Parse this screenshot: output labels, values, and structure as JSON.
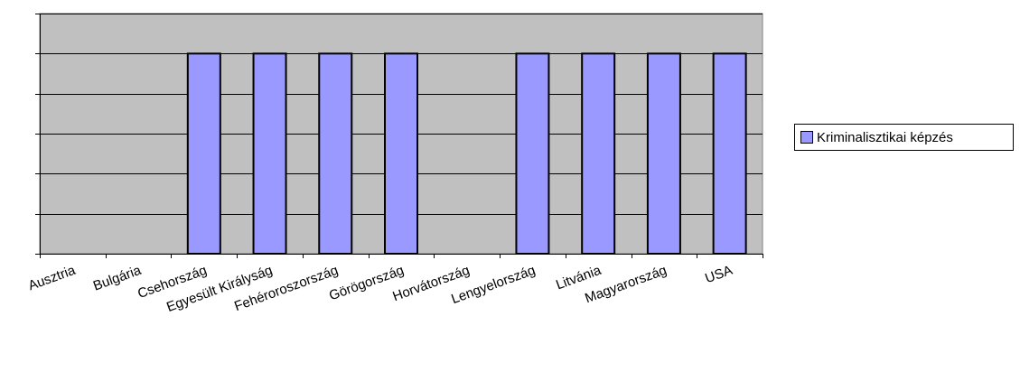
{
  "chart_data": {
    "type": "bar",
    "categories": [
      "Ausztria",
      "Bulgária",
      "Csehország",
      "Egyesült Királyság",
      "Fehéroroszország",
      "Görögország",
      "Horvátország",
      "Lengyelország",
      "Litvánia",
      "Magyarország",
      "USA"
    ],
    "series": [
      {
        "name": "Kriminalisztikai képzés",
        "values": [
          0,
          0,
          1,
          1,
          1,
          1,
          0,
          1,
          1,
          1,
          1
        ]
      }
    ],
    "ylim": [
      0,
      1.2
    ],
    "y_tick_step": 0.2,
    "y_tick_labels_shown": false,
    "grid": true,
    "legend_position": "right",
    "colors": {
      "bar": "#9999ff",
      "plot_background": "#c0c0c0",
      "grid": "#000000"
    }
  }
}
